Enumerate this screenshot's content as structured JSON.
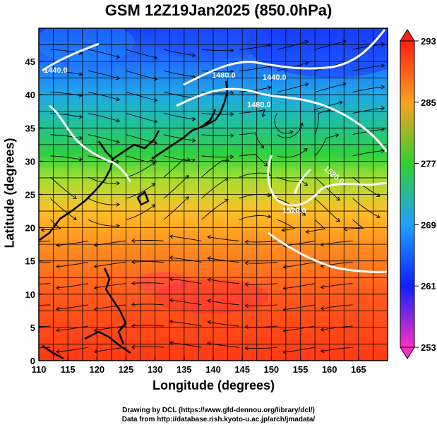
{
  "title": "GSM 12Z19Jan2025 (850.0hPa)",
  "xlabel": "Longitude (degrees)",
  "ylabel": "Latitude  (degrees)",
  "credits": [
    "Drawing by DCL (https://www.gfd-dennou.org/library/dcl/)",
    "Data from http://database.rish.kyoto-u.ac.jp/arch/jmadata/"
  ],
  "map": {
    "xlim": [
      110,
      170
    ],
    "ylim": [
      0,
      50
    ],
    "x_ticks": [
      "110",
      "115",
      "120",
      "125",
      "130",
      "135",
      "140",
      "145",
      "150",
      "155",
      "160",
      "165"
    ],
    "y_ticks": [
      "0",
      "5",
      "10",
      "15",
      "20",
      "25",
      "30",
      "35",
      "40",
      "45"
    ],
    "colors": {
      "tropical": "#ff4a1c",
      "subtropical": "#ff9a1c",
      "midlat": "#40c040",
      "cold": "#2aa0ff",
      "very_cold": "#1030ff"
    }
  },
  "colorbar": {
    "ticks": [
      "253",
      "261",
      "269",
      "277",
      "285",
      "293"
    ],
    "colors": [
      "#ff30c0",
      "#1020ff",
      "#20a0ff",
      "#30d030",
      "#ffa020",
      "#ff2010"
    ]
  },
  "contour_labels": [
    "1440.0",
    "1480.0",
    "1440.0",
    "1480.0",
    "1520.0",
    "1520.0"
  ]
}
